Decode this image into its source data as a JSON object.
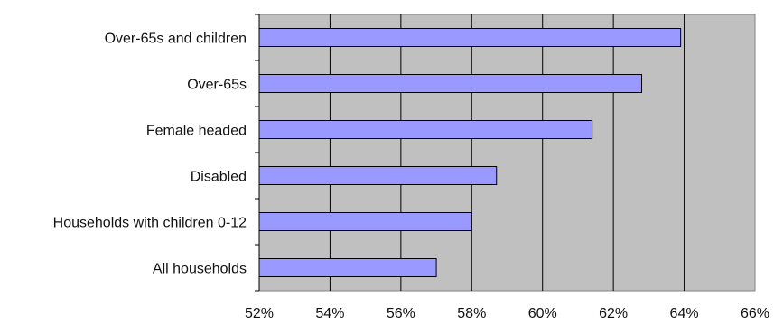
{
  "chart_data": {
    "type": "bar",
    "orientation": "horizontal",
    "categories": [
      "Over-65s and children",
      "Over-65s",
      "Female headed",
      "Disabled",
      "Households with children 0-12",
      "All households"
    ],
    "values": [
      63.9,
      62.8,
      61.4,
      58.7,
      58.0,
      57.0
    ],
    "value_unit": "%",
    "xlim": [
      52,
      66
    ],
    "x_ticks": [
      52,
      54,
      56,
      58,
      60,
      62,
      64,
      66
    ],
    "x_tick_labels": [
      "52%",
      "54%",
      "56%",
      "58%",
      "60%",
      "62%",
      "64%",
      "66%"
    ],
    "grid": "vertical",
    "title": "",
    "xlabel": "",
    "ylabel": "",
    "colors": {
      "plot_background": "#c0c0c0",
      "bar_fill": "#9999ff",
      "bar_stroke": "#000000",
      "gridline": "#000000"
    }
  }
}
